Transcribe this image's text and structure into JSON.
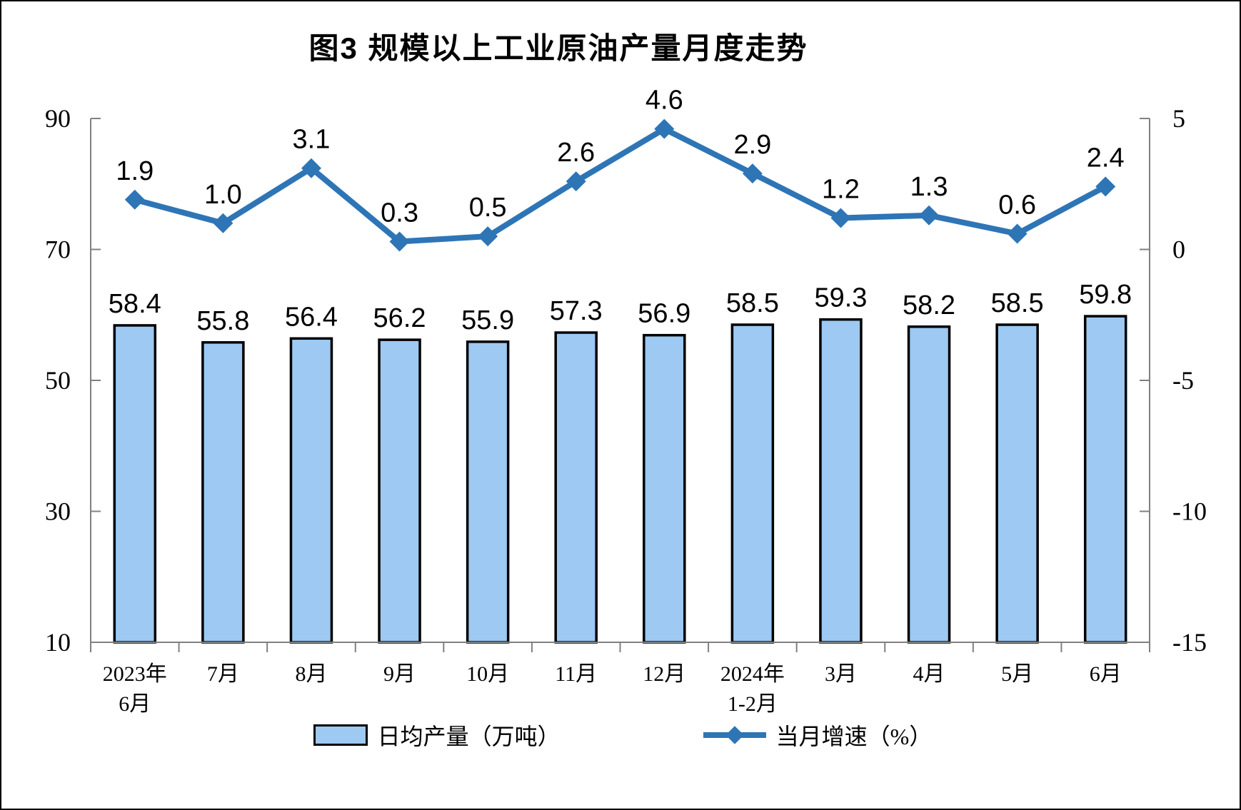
{
  "chart_data": {
    "type": "combo",
    "title": "图3 规模以上工业原油产量月度走势",
    "categories": [
      [
        "2023年",
        "6月"
      ],
      [
        "7月"
      ],
      [
        "8月"
      ],
      [
        "9月"
      ],
      [
        "10月"
      ],
      [
        "11月"
      ],
      [
        "12月"
      ],
      [
        "2024年",
        "1-2月"
      ],
      [
        "3月"
      ],
      [
        "4月"
      ],
      [
        "5月"
      ],
      [
        "6月"
      ]
    ],
    "series": [
      {
        "name": "日均产量（万吨）",
        "type": "bar",
        "axis": "left",
        "values": [
          58.4,
          55.8,
          56.4,
          56.2,
          55.9,
          57.3,
          56.9,
          58.5,
          59.3,
          58.2,
          58.5,
          59.8
        ]
      },
      {
        "name": "当月增速（%）",
        "type": "line",
        "axis": "right",
        "values": [
          1.9,
          1.0,
          3.1,
          0.3,
          0.5,
          2.6,
          4.6,
          2.9,
          1.2,
          1.3,
          0.6,
          2.4
        ]
      }
    ],
    "left_axis": {
      "min": 10,
      "max": 90,
      "ticks": [
        90,
        70,
        50,
        30,
        10
      ]
    },
    "right_axis": {
      "min": -15,
      "max": 5,
      "ticks": [
        5,
        0,
        -5,
        -10,
        -15
      ]
    },
    "grid": false,
    "legend_position": "bottom",
    "colors": {
      "bar_fill": "#9DC9F2",
      "bar_border": "#000000",
      "line": "#2E75B6",
      "axis_line": "#808080",
      "text": "#000000"
    }
  }
}
